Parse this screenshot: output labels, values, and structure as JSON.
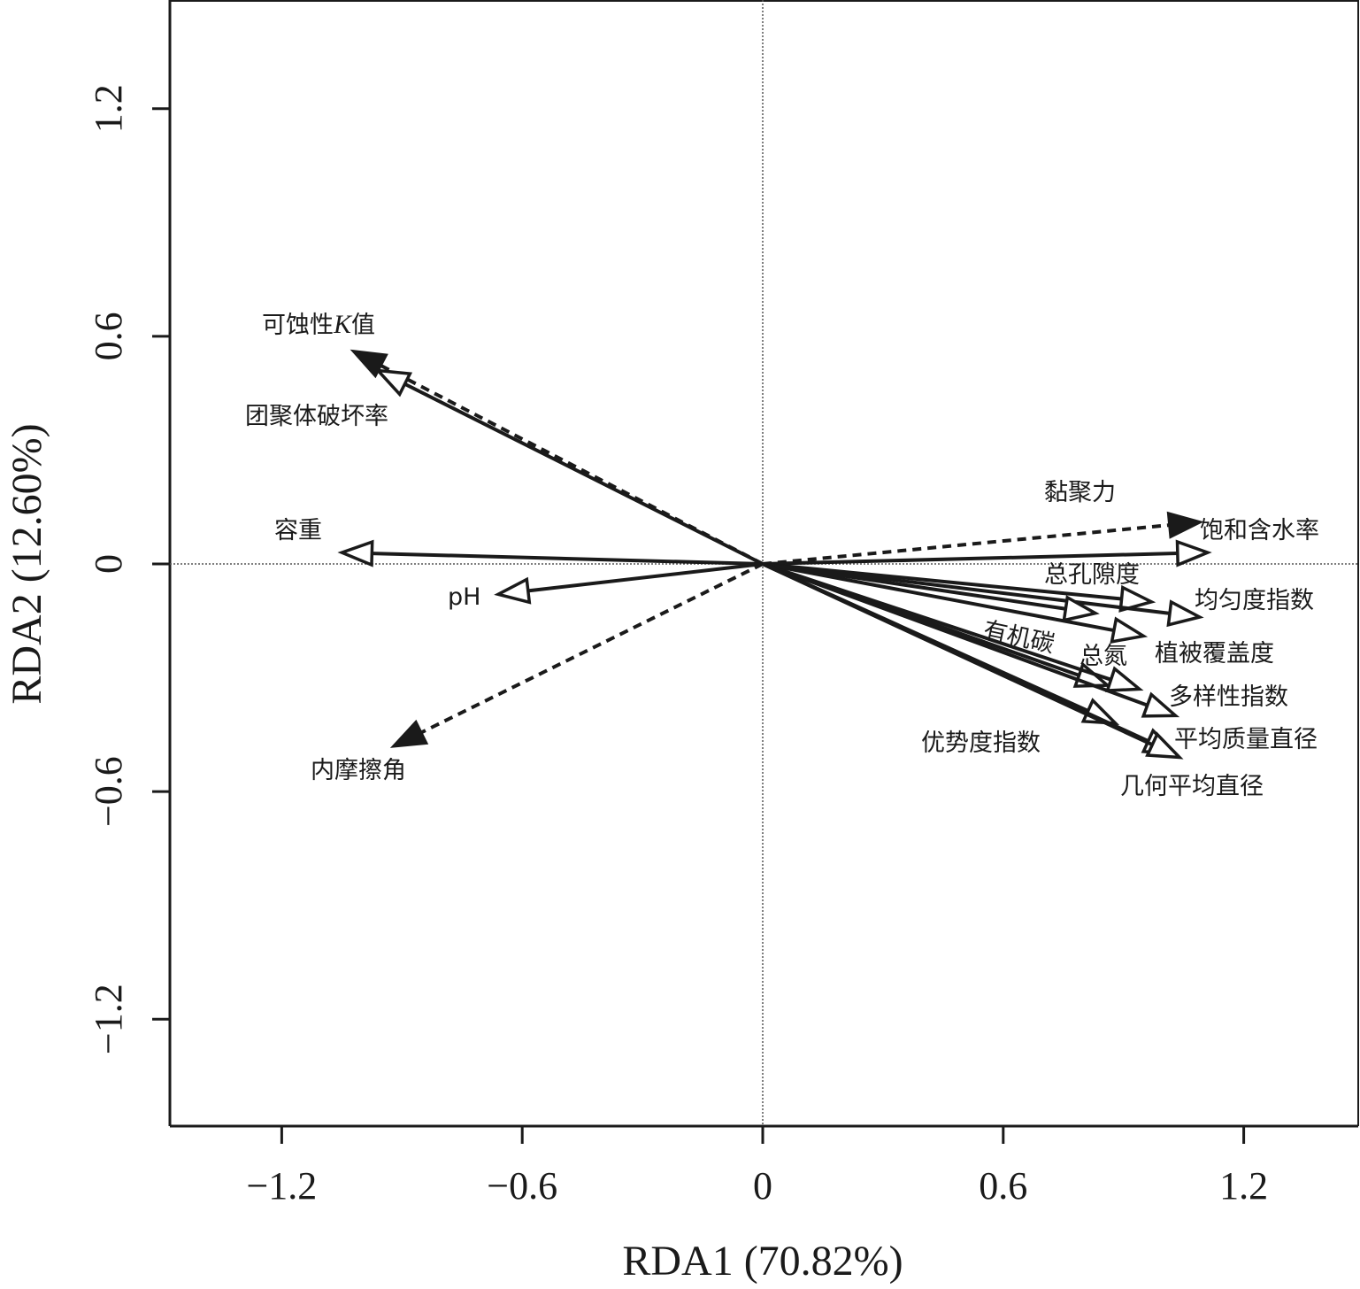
{
  "chart_data": {
    "type": "scatter",
    "subtype": "rda-biplot",
    "xlabel": "RDA1 (70.82%)",
    "ylabel": "RDA2 (12.60%)",
    "xlim": [
      -1.55,
      1.55
    ],
    "ylim": [
      -1.48,
      1.48
    ],
    "x_ticks": [
      "−1.2",
      "−0.6",
      "0",
      "0.6",
      "1.2"
    ],
    "x_tick_values": [
      -1.2,
      -0.6,
      0,
      0.6,
      1.2
    ],
    "y_ticks": [
      "−1.2",
      "−0.6",
      "0",
      "0.6",
      "1.2"
    ],
    "y_tick_values": [
      -1.2,
      -0.6,
      0,
      0.6,
      1.2
    ],
    "zero_lines": true,
    "grid": false,
    "vectors": [
      {
        "label": "可蚀性",
        "label_italic": "K",
        "label_suffix": "值",
        "x": -1.02,
        "y": 0.56,
        "style": "dashed",
        "head": "filled"
      },
      {
        "label": "团聚体破坏率",
        "x": -0.96,
        "y": 0.51,
        "style": "solid",
        "head": "open"
      },
      {
        "label": "容重",
        "x": -1.05,
        "y": 0.03,
        "style": "solid",
        "head": "open"
      },
      {
        "label": "pH",
        "x": -0.66,
        "y": -0.08,
        "style": "solid",
        "head": "open"
      },
      {
        "label": "内摩擦角",
        "x": -0.92,
        "y": -0.48,
        "style": "dashed",
        "head": "filled"
      },
      {
        "label": "黏聚力",
        "x": 1.09,
        "y": 0.11,
        "style": "dashed",
        "head": "filled"
      },
      {
        "label": "饱和含水率",
        "x": 1.11,
        "y": 0.03,
        "style": "solid",
        "head": "open"
      },
      {
        "label": "总孔隙度",
        "x": 0.97,
        "y": -0.1,
        "style": "solid",
        "head": "open"
      },
      {
        "label": "均匀度指数",
        "x": 1.09,
        "y": -0.14,
        "style": "solid",
        "head": "open"
      },
      {
        "label": "有机碳",
        "x": 0.83,
        "y": -0.13,
        "style": "solid",
        "head": "open"
      },
      {
        "label": "植被覆盖度",
        "x": 0.95,
        "y": -0.19,
        "style": "solid",
        "head": "open"
      },
      {
        "label": "总氮",
        "x": 0.86,
        "y": -0.32,
        "style": "solid",
        "head": "open"
      },
      {
        "label": "",
        "x": 0.94,
        "y": -0.33,
        "style": "solid",
        "head": "open"
      },
      {
        "label": "多样性指数",
        "x": 1.03,
        "y": -0.4,
        "style": "solid",
        "head": "open"
      },
      {
        "label": "优势度指数",
        "x": 0.88,
        "y": -0.42,
        "style": "solid",
        "head": "open"
      },
      {
        "label": "平均质量直径",
        "x": 1.03,
        "y": -0.5,
        "style": "solid",
        "head": "open"
      },
      {
        "label": "几何平均直径",
        "x": 1.04,
        "y": -0.51,
        "style": "solid",
        "head": "open"
      }
    ]
  }
}
